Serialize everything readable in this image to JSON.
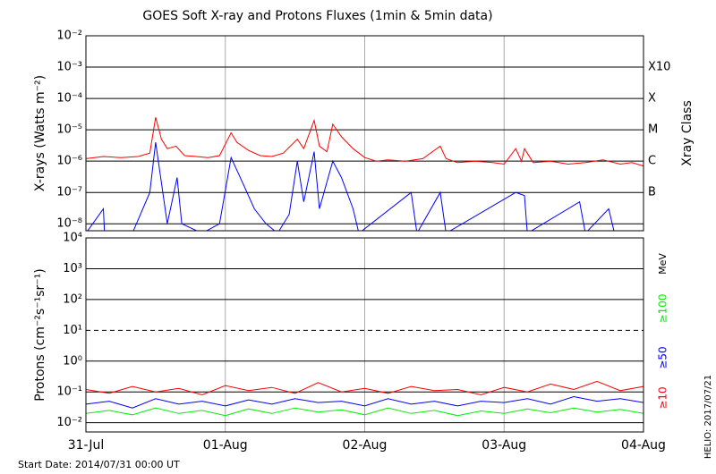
{
  "title": "GOES Soft X-ray and Protons Fluxes   (1min & 5min data)",
  "footer": "Start Date: 2014/07/31 00:00 UT",
  "side_note": "HELIO: 2017/07/21",
  "x_axis": {
    "xlim": [
      0,
      96
    ],
    "xticks": [
      {
        "value": 0,
        "label": "31-Jul"
      },
      {
        "value": 24,
        "label": "01-Aug"
      },
      {
        "value": 48,
        "label": "02-Aug"
      },
      {
        "value": 72,
        "label": "03-Aug"
      },
      {
        "value": 96,
        "label": "04-Aug"
      }
    ]
  },
  "chart_data": [
    {
      "type": "line",
      "y_label": "X-rays (Watts m⁻²)",
      "log_y": true,
      "ylim": [
        6e-09,
        0.01
      ],
      "yticks": [
        {
          "value": 0.01,
          "label": "10⁻²"
        },
        {
          "value": 0.001,
          "label": "10⁻³"
        },
        {
          "value": 0.0001,
          "label": "10⁻⁴"
        },
        {
          "value": 1e-05,
          "label": "10⁻⁵"
        },
        {
          "value": 1e-06,
          "label": "10⁻⁶"
        },
        {
          "value": 1e-07,
          "label": "10⁻⁷"
        },
        {
          "value": 1e-08,
          "label": "10⁻⁸"
        }
      ],
      "class_title": "Xray Class",
      "class_labels": [
        {
          "value": 0.001,
          "label": "X10"
        },
        {
          "value": 0.0001,
          "label": "X"
        },
        {
          "value": 1e-05,
          "label": "M"
        },
        {
          "value": 1e-06,
          "label": "C"
        },
        {
          "value": 1e-07,
          "label": "B"
        }
      ],
      "series": [
        {
          "color": "#ff0000",
          "x": [
            0,
            3,
            6,
            9,
            11,
            12,
            13,
            14,
            15.5,
            17,
            19,
            21,
            23,
            25,
            26,
            28,
            30,
            32,
            34,
            36.4,
            37.5,
            39.3,
            40.2,
            41.5,
            42.5,
            44,
            46,
            48,
            50,
            52,
            55,
            58,
            61,
            62,
            64,
            67,
            70,
            72,
            74,
            75,
            75.5,
            77,
            80,
            83,
            86,
            89,
            92,
            94,
            96
          ],
          "values": [
            1.2e-06,
            1.4e-06,
            1.3e-06,
            1.4e-06,
            1.8e-06,
            2.5e-05,
            5e-06,
            2.5e-06,
            3e-06,
            1.5e-06,
            1.4e-06,
            1.3e-06,
            1.5e-06,
            8e-06,
            4e-06,
            2.2e-06,
            1.5e-06,
            1.4e-06,
            1.8e-06,
            5e-06,
            2.5e-06,
            2e-05,
            3e-06,
            2e-06,
            1.5e-05,
            6e-06,
            2.5e-06,
            1.3e-06,
            1e-06,
            1.1e-06,
            1e-06,
            1.2e-06,
            3e-06,
            1.2e-06,
            9e-07,
            1e-06,
            9e-07,
            8e-07,
            2.5e-06,
            1e-06,
            2.5e-06,
            9e-07,
            1e-06,
            8e-07,
            9e-07,
            1.1e-06,
            8e-07,
            9e-07,
            7e-07
          ]
        },
        {
          "color": "#0000ff",
          "x": [
            0,
            3,
            3.2,
            8,
            11,
            12,
            13,
            14,
            15.7,
            16.5,
            20,
            23,
            25,
            27,
            29,
            31,
            33,
            35,
            36.4,
            37.5,
            39.3,
            40.2,
            42.5,
            44,
            46,
            47,
            56,
            57,
            61,
            62,
            74,
            75.5,
            76,
            85,
            86,
            90,
            91,
            96
          ],
          "values": [
            5e-09,
            3e-08,
            5e-09,
            5e-09,
            1e-07,
            4e-06,
            2e-07,
            1e-08,
            3e-07,
            1e-08,
            5e-09,
            1e-08,
            1.3e-06,
            2e-07,
            3e-08,
            1e-08,
            5e-09,
            2e-08,
            1e-06,
            5e-08,
            2e-06,
            3e-08,
            1e-06,
            3e-07,
            3e-08,
            5e-09,
            1e-07,
            5e-09,
            1e-07,
            5e-09,
            1e-07,
            8e-08,
            5e-09,
            5e-08,
            5e-09,
            3e-08,
            5e-09,
            5e-09
          ]
        }
      ]
    },
    {
      "type": "line",
      "y_label": "Protons (cm⁻²s⁻¹sr⁻¹)",
      "log_y": true,
      "ylim": [
        0.005,
        10000
      ],
      "yticks": [
        {
          "value": 10000,
          "label": "10⁴"
        },
        {
          "value": 1000,
          "label": "10³"
        },
        {
          "value": 100,
          "label": "10²"
        },
        {
          "value": 10,
          "label": "10¹"
        },
        {
          "value": 1,
          "label": "10⁰"
        },
        {
          "value": 0.1,
          "label": "10⁻¹"
        },
        {
          "value": 0.01,
          "label": "10⁻²"
        }
      ],
      "threshold": 10,
      "legend_unit": "MeV",
      "series": [
        {
          "name": "≥100",
          "color": "#00ee00",
          "x": [
            0,
            4,
            8,
            12,
            16,
            20,
            24,
            28,
            32,
            36,
            40,
            44,
            48,
            52,
            56,
            60,
            64,
            68,
            72,
            76,
            80,
            84,
            88,
            92,
            96
          ],
          "values": [
            0.02,
            0.025,
            0.018,
            0.03,
            0.02,
            0.025,
            0.017,
            0.028,
            0.02,
            0.03,
            0.022,
            0.026,
            0.018,
            0.03,
            0.02,
            0.025,
            0.017,
            0.024,
            0.02,
            0.028,
            0.021,
            0.03,
            0.022,
            0.027,
            0.02
          ]
        },
        {
          "name": "≥50",
          "color": "#0000ff",
          "x": [
            0,
            4,
            8,
            12,
            16,
            20,
            24,
            28,
            32,
            36,
            40,
            44,
            48,
            52,
            56,
            60,
            64,
            68,
            72,
            76,
            80,
            84,
            88,
            92,
            96
          ],
          "values": [
            0.04,
            0.05,
            0.03,
            0.06,
            0.04,
            0.05,
            0.035,
            0.055,
            0.04,
            0.06,
            0.045,
            0.05,
            0.035,
            0.06,
            0.04,
            0.05,
            0.035,
            0.05,
            0.045,
            0.06,
            0.04,
            0.07,
            0.05,
            0.06,
            0.045
          ]
        },
        {
          "name": "≥10",
          "color": "#ff0000",
          "x": [
            0,
            4,
            8,
            12,
            16,
            20,
            24,
            28,
            32,
            36,
            40,
            44,
            48,
            52,
            56,
            60,
            64,
            68,
            72,
            76,
            80,
            84,
            88,
            92,
            96
          ],
          "values": [
            0.12,
            0.09,
            0.15,
            0.1,
            0.13,
            0.08,
            0.16,
            0.11,
            0.14,
            0.09,
            0.2,
            0.1,
            0.13,
            0.09,
            0.15,
            0.11,
            0.12,
            0.08,
            0.14,
            0.1,
            0.18,
            0.12,
            0.22,
            0.11,
            0.15
          ]
        }
      ]
    }
  ]
}
